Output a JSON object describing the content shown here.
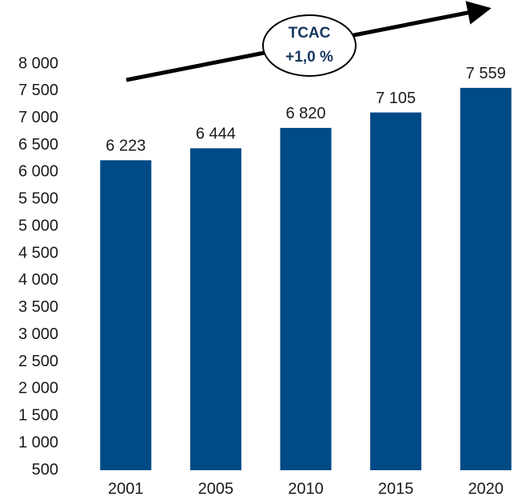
{
  "chart_data": {
    "type": "bar",
    "categories": [
      "2001",
      "2005",
      "2010",
      "2015",
      "2020"
    ],
    "values": [
      6223,
      6444,
      6820,
      7105,
      7559
    ],
    "value_labels": [
      "6 223",
      "6 444",
      "6 820",
      "7 105",
      "7 559"
    ],
    "color": "#004a86",
    "ylim": [
      500,
      8000
    ],
    "yticks": [
      500,
      {
        "value": 1000,
        "label": "1 000"
      },
      {
        "value": 1500,
        "label": "1 500"
      },
      {
        "value": 2000,
        "label": "2 000"
      },
      {
        "value": 2500,
        "label": "2 500"
      },
      {
        "value": 3000,
        "label": "3 000"
      },
      {
        "value": 3500,
        "label": "3 500"
      },
      {
        "value": 4000,
        "label": "4 000"
      },
      {
        "value": 4500,
        "label": "4 500"
      },
      {
        "value": 5000,
        "label": "5 000"
      },
      {
        "value": 5500,
        "label": "5 500"
      },
      {
        "value": 6000,
        "label": "6 000"
      },
      {
        "value": 6500,
        "label": "6 500"
      },
      {
        "value": 7000,
        "label": "7 000"
      },
      {
        "value": 7500,
        "label": "7 500"
      },
      {
        "value": 8000,
        "label": "8 000"
      }
    ],
    "grid": false,
    "annotation": [
      "TCAC",
      "+1,0 %"
    ]
  }
}
